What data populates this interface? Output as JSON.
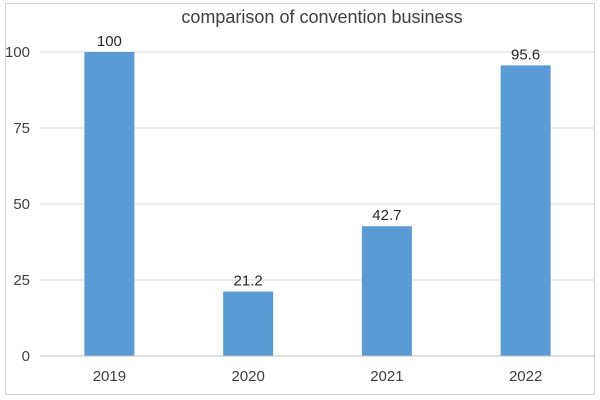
{
  "chart_data": {
    "type": "bar",
    "title": "comparison of convention business",
    "xlabel": "",
    "ylabel": "",
    "categories": [
      "2019",
      "2020",
      "2021",
      "2022"
    ],
    "values": [
      100,
      21.2,
      42.7,
      95.6
    ],
    "data_labels": [
      "100",
      "21.2",
      "42.7",
      "95.6"
    ],
    "ylim": [
      0,
      100
    ],
    "yticks": [
      0,
      25,
      50,
      75,
      100
    ],
    "ytick_labels": [
      "0",
      "25",
      "50",
      "75",
      "100"
    ],
    "grid": true,
    "legend": "none",
    "bar_color": "#5b9bd5"
  }
}
